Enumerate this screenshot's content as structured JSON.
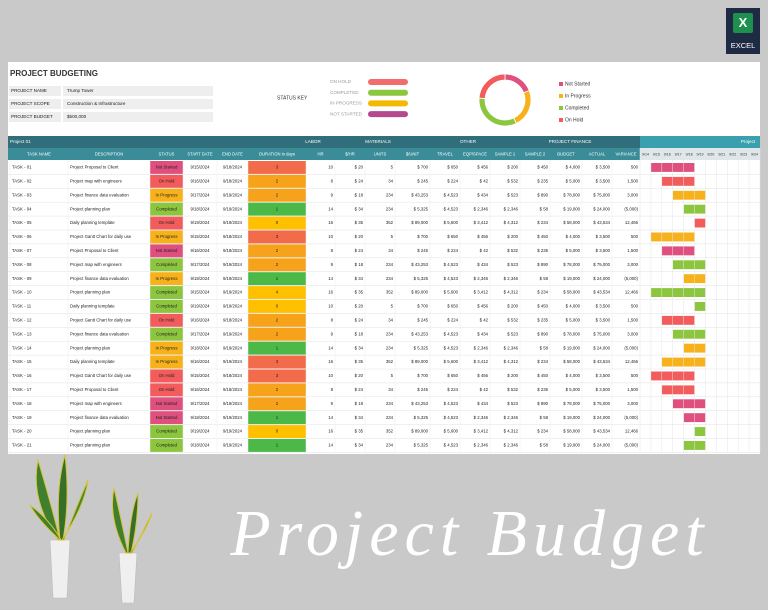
{
  "icon": {
    "letter": "X",
    "label": "EXCEL"
  },
  "header": {
    "title": "PROJECT BUDGETING",
    "info": [
      [
        "PROJECT NAME",
        "Trump Tower"
      ],
      [
        "PROJECT SCOPE",
        "Construction & Infrastructure"
      ],
      [
        "PROJECT BUDGET",
        "$500,000"
      ]
    ],
    "status_key_title": "STATUS KEY",
    "status_key": [
      {
        "label": "ON HOLD",
        "color": "#f26d6d"
      },
      {
        "label": "COMPLETED",
        "color": "#8cc63f"
      },
      {
        "label": "IN PROGRESS",
        "color": "#f5b800"
      },
      {
        "label": "NOT STARTED",
        "color": "#b5498e"
      }
    ]
  },
  "chart_data": {
    "type": "pie",
    "donut": true,
    "categories": [
      "Not Started",
      "In Progress",
      "Completed",
      "On Hold"
    ],
    "values": [
      4,
      5,
      7,
      5
    ],
    "colors": [
      "#e0507e",
      "#f7b21b",
      "#8cc63f",
      "#f25c5c"
    ]
  },
  "table": {
    "group_headers": [
      "Project 01",
      "LABOR",
      "MATERIALS",
      "OTHER",
      "PROJECT FINANCE",
      "Project"
    ],
    "columns": [
      "TASK NAME",
      "DESCRIPTION",
      "STATUS",
      "START DATE",
      "END DATE",
      "DURATION in days",
      "HR",
      "$/HR",
      "UNITS",
      "$/UNIT",
      "TRAVEL",
      "EQP/SPACE",
      "SAMPLE 1",
      "SAMPLE 2",
      "BUDGET",
      "ACTUAL",
      "VARIANCE"
    ],
    "duration_colors": [
      "#ffc000",
      "#4cb848",
      "#f7a21b",
      "#f26b4a"
    ],
    "rows": [
      [
        "TASK - 01",
        "Project Proposal to Client",
        "Not Started",
        "9/15/2024",
        "9/18/2024",
        "3",
        "10",
        "$ 20",
        "5",
        "$ 700",
        "$ 650",
        "$ 456",
        "$ 200",
        "$ 450",
        "$ 4,000",
        "$ 3,500",
        "500"
      ],
      [
        "TASK - 02",
        "Project map with engineers",
        "On Hold",
        "9/16/2024",
        "9/18/2024",
        "2",
        "8",
        "$ 24",
        "34",
        "$ 245",
        "$ 224",
        "$ 42",
        "$ 532",
        "$ 235",
        "$ 5,000",
        "$ 3,500",
        "1,500"
      ],
      [
        "TASK - 03",
        "Project finance data evaluation",
        "In Progress",
        "9/17/2024",
        "9/19/2024",
        "2",
        "9",
        "$ 18",
        "234",
        "$ 43,253",
        "$ 4,523",
        "$ 434",
        "$ 523",
        "$ 890",
        "$ 78,000",
        "$ 75,000",
        "3,000"
      ],
      [
        "TASK - 04",
        "Project planning plan",
        "Completed",
        "9/18/2024",
        "9/19/2024",
        "1",
        "14",
        "$ 34",
        "234",
        "$ 5,325",
        "$ 4,523",
        "$ 2,346",
        "$ 2,346",
        "$ 58",
        "$ 19,000",
        "$ 24,000",
        "(5,000)"
      ],
      [
        "TASK - 05",
        "Daily planning template",
        "On Hold",
        "9/19/2024",
        "9/19/2024",
        "0",
        "16",
        "$ 35",
        "352",
        "$ 89,000",
        "$ 5,600",
        "$ 3,412",
        "$ 4,312",
        "$ 234",
        "$ 58,000",
        "$ 43,534",
        "12,466"
      ],
      [
        "TASK - 06",
        "Project Gantt Chart for daily use",
        "In Progress",
        "9/15/2024",
        "9/18/2024",
        "3",
        "10",
        "$ 20",
        "5",
        "$ 700",
        "$ 650",
        "$ 456",
        "$ 200",
        "$ 450",
        "$ 4,000",
        "$ 3,500",
        "500"
      ],
      [
        "TASK - 07",
        "Project Proposal to Client",
        "Not Started",
        "9/16/2024",
        "9/18/2024",
        "2",
        "8",
        "$ 24",
        "34",
        "$ 245",
        "$ 224",
        "$ 42",
        "$ 532",
        "$ 235",
        "$ 5,000",
        "$ 3,500",
        "1,500"
      ],
      [
        "TASK - 08",
        "Project map with engineers",
        "Completed",
        "9/17/2024",
        "9/19/2024",
        "2",
        "9",
        "$ 18",
        "234",
        "$ 43,253",
        "$ 4,523",
        "$ 434",
        "$ 523",
        "$ 890",
        "$ 78,000",
        "$ 75,000",
        "3,000"
      ],
      [
        "TASK - 09",
        "Project finance data evaluation",
        "In Progress",
        "9/18/2024",
        "9/19/2024",
        "1",
        "14",
        "$ 34",
        "234",
        "$ 5,325",
        "$ 4,523",
        "$ 2,346",
        "$ 2,346",
        "$ 58",
        "$ 19,000",
        "$ 24,000",
        "(5,000)"
      ],
      [
        "TASK - 10",
        "Project planning plan",
        "Completed",
        "9/15/2024",
        "9/19/2024",
        "4",
        "16",
        "$ 35",
        "352",
        "$ 89,000",
        "$ 5,600",
        "$ 3,412",
        "$ 4,312",
        "$ 234",
        "$ 58,000",
        "$ 43,534",
        "12,466"
      ],
      [
        "TASK - 11",
        "Daily planning template",
        "Completed",
        "9/19/2024",
        "9/19/2024",
        "0",
        "10",
        "$ 20",
        "5",
        "$ 700",
        "$ 650",
        "$ 456",
        "$ 200",
        "$ 450",
        "$ 4,000",
        "$ 3,500",
        "500"
      ],
      [
        "TASK - 12",
        "Project Gantt Chart for daily use",
        "On Hold",
        "9/16/2024",
        "9/18/2024",
        "2",
        "8",
        "$ 24",
        "34",
        "$ 245",
        "$ 224",
        "$ 42",
        "$ 532",
        "$ 235",
        "$ 5,000",
        "$ 3,500",
        "1,500"
      ],
      [
        "TASK - 13",
        "Project finance data evaluation",
        "Completed",
        "9/17/2024",
        "9/19/2024",
        "2",
        "9",
        "$ 18",
        "234",
        "$ 43,253",
        "$ 4,523",
        "$ 434",
        "$ 523",
        "$ 890",
        "$ 78,000",
        "$ 75,000",
        "3,000"
      ],
      [
        "TASK - 14",
        "Project planning plan",
        "In Progress",
        "9/18/2024",
        "9/19/2024",
        "1",
        "14",
        "$ 34",
        "234",
        "$ 5,325",
        "$ 4,523",
        "$ 2,346",
        "$ 2,346",
        "$ 58",
        "$ 19,000",
        "$ 24,000",
        "(5,000)"
      ],
      [
        "TASK - 15",
        "Daily planning template",
        "In Progress",
        "9/16/2024",
        "9/19/2024",
        "3",
        "16",
        "$ 35",
        "352",
        "$ 89,000",
        "$ 5,600",
        "$ 3,412",
        "$ 4,312",
        "$ 234",
        "$ 58,000",
        "$ 43,534",
        "12,466"
      ],
      [
        "TASK - 16",
        "Project Gantt Chart for daily use",
        "On Hold",
        "9/15/2024",
        "9/18/2024",
        "3",
        "10",
        "$ 20",
        "5",
        "$ 700",
        "$ 650",
        "$ 456",
        "$ 200",
        "$ 450",
        "$ 4,000",
        "$ 3,500",
        "500"
      ],
      [
        "TASK - 17",
        "Project Proposal to Client",
        "On Hold",
        "9/16/2024",
        "9/18/2024",
        "2",
        "8",
        "$ 24",
        "34",
        "$ 245",
        "$ 224",
        "$ 42",
        "$ 532",
        "$ 235",
        "$ 5,000",
        "$ 3,500",
        "1,500"
      ],
      [
        "TASK - 18",
        "Project map with engineers",
        "Not Started",
        "9/17/2024",
        "9/19/2024",
        "2",
        "9",
        "$ 18",
        "234",
        "$ 43,253",
        "$ 4,523",
        "$ 434",
        "$ 523",
        "$ 890",
        "$ 78,000",
        "$ 75,000",
        "3,000"
      ],
      [
        "TASK - 19",
        "Project finance data evaluation",
        "Not Started",
        "9/18/2024",
        "9/19/2024",
        "1",
        "14",
        "$ 34",
        "234",
        "$ 5,325",
        "$ 4,523",
        "$ 2,346",
        "$ 2,346",
        "$ 58",
        "$ 19,000",
        "$ 24,000",
        "(5,000)"
      ],
      [
        "TASK - 20",
        "Project planning plan",
        "Completed",
        "9/19/2024",
        "9/19/2024",
        "0",
        "16",
        "$ 35",
        "352",
        "$ 89,000",
        "$ 5,600",
        "$ 3,412",
        "$ 4,312",
        "$ 234",
        "$ 58,000",
        "$ 43,534",
        "12,466"
      ],
      [
        "TASK - 21",
        "Project planning plan",
        "Completed",
        "9/18/2024",
        "9/19/2024",
        "1",
        "14",
        "$ 34",
        "234",
        "$ 5,325",
        "$ 4,523",
        "$ 2,346",
        "$ 2,346",
        "$ 58",
        "$ 19,000",
        "$ 24,000",
        "(5,000)"
      ]
    ]
  },
  "gantt": {
    "dates": [
      "9/14",
      "9/15",
      "9/16",
      "9/17",
      "9/18",
      "9/19",
      "9/20",
      "9/21",
      "9/22",
      "9/23",
      "9/24"
    ]
  },
  "banner": {
    "text": "Project Budget"
  }
}
